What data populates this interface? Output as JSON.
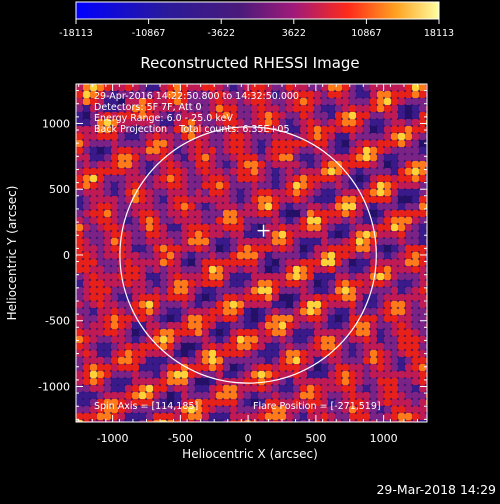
{
  "plot": {
    "title": "Reconstructed RHESSI Image",
    "info_lines": [
      "29-Apr-2016 14:22:50.800 to 14:32:50.000",
      "Detectors: 5F 7F, Att 0",
      "Energy Range: 6.0 - 25.0 keV",
      "Back Projection    Total counts: 6.35E+05"
    ],
    "spin_axis": "Spin Axis = [114,185]",
    "flare_position": "Flare Position = [-271,519]",
    "footer_date": "29-Mar-2018 14:29",
    "colors": {
      "background": "#000000",
      "plot_frame": "#ffffff",
      "solar_limb": "#ffffff",
      "map_dark": "#23116b",
      "map_mid": "#8a2a8a",
      "map_red": "#e01818",
      "map_bright": "#ffd23a"
    }
  },
  "colorbar": {
    "tick_labels": [
      "-18113",
      "-10867",
      "-3622",
      "3622",
      "10867",
      "18113"
    ],
    "range": [
      -18113,
      18113
    ]
  },
  "chart_data": {
    "type": "heatmap",
    "title": "Reconstructed RHESSI Image",
    "xlabel": "Heliocentric X (arcsec)",
    "ylabel": "Heliocentric Y (arcsec)",
    "xlim": [
      -1270,
      1320
    ],
    "ylim": [
      -1270,
      1300
    ],
    "x_ticks": [
      -1000,
      -500,
      0,
      500,
      1000
    ],
    "y_ticks": [
      -1000,
      -500,
      0,
      500,
      1000
    ],
    "x_tick_labels": [
      "-1000",
      "-500",
      "0",
      "500",
      "1000"
    ],
    "y_tick_labels": [
      "-1000",
      "-500",
      "0",
      "500",
      "1000"
    ],
    "value_range": [
      -18113,
      18113
    ],
    "solar_limb_radius_arcsec": 960,
    "solar_limb_center_arcsec": [
      0,
      0
    ],
    "marker_position_arcsec": [
      114,
      185
    ],
    "marker_symbol": "cross"
  }
}
